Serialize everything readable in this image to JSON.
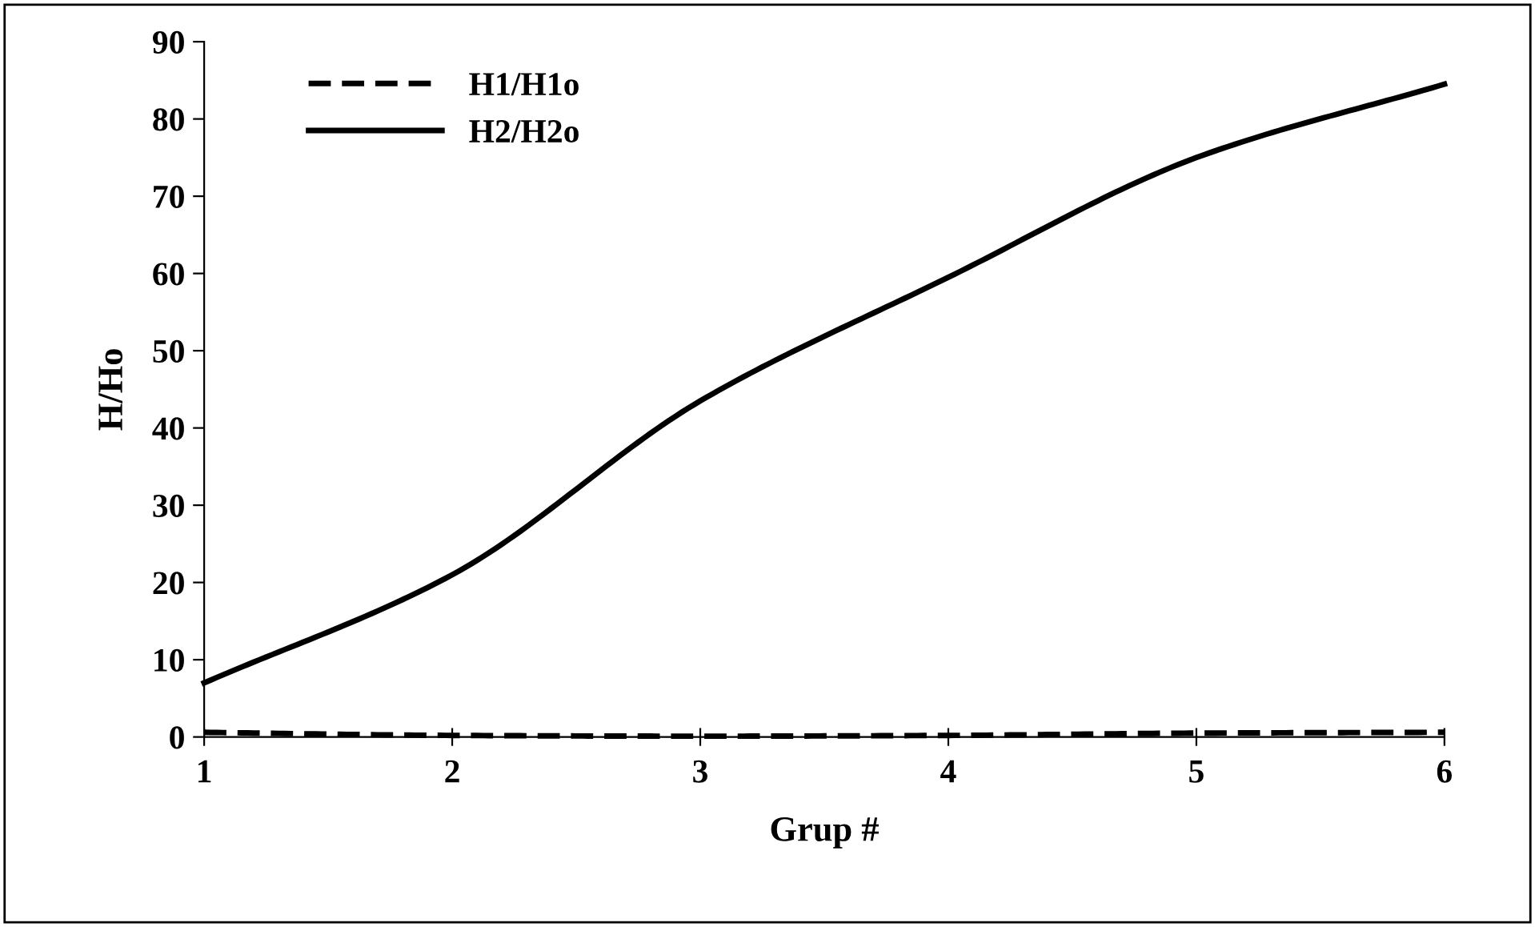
{
  "chart_data": {
    "type": "line",
    "xlabel": "Grup #",
    "ylabel": "H/Ho",
    "x": [
      1,
      2,
      3,
      4,
      5,
      6
    ],
    "series": [
      {
        "name": "H1/H1o",
        "color": "#000000",
        "line_style": "dashed",
        "values": [
          0.6,
          0.2,
          0.1,
          0.2,
          0.5,
          0.6
        ]
      },
      {
        "name": "H2/H2o",
        "color": "#000000",
        "line_style": "solid",
        "values": [
          7,
          21,
          43.5,
          59.5,
          75,
          84.5
        ]
      }
    ],
    "xlim": [
      1,
      6
    ],
    "xticks": [
      1,
      2,
      3,
      4,
      5,
      6
    ],
    "ylim": [
      0,
      90
    ],
    "yticks": [
      0,
      10,
      20,
      30,
      40,
      50,
      60,
      70,
      80,
      90
    ],
    "grid": false,
    "legend": "top left",
    "marker": "none"
  }
}
